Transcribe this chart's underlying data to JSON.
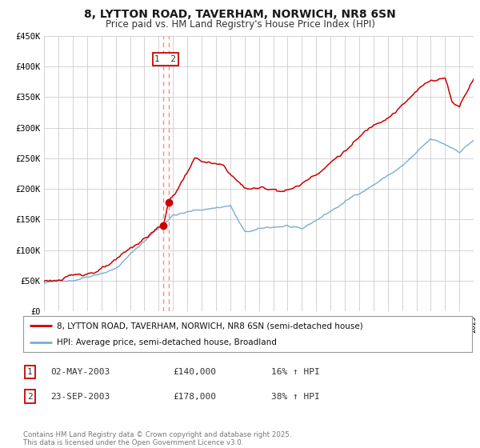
{
  "title": "8, LYTTON ROAD, TAVERHAM, NORWICH, NR8 6SN",
  "subtitle": "Price paid vs. HM Land Registry's House Price Index (HPI)",
  "legend_property": "8, LYTTON ROAD, TAVERHAM, NORWICH, NR8 6SN (semi-detached house)",
  "legend_hpi": "HPI: Average price, semi-detached house, Broadland",
  "sale1_label": "1",
  "sale1_date": "02-MAY-2003",
  "sale1_price": "£140,000",
  "sale1_hpi": "16% ↑ HPI",
  "sale2_label": "2",
  "sale2_date": "23-SEP-2003",
  "sale2_price": "£178,000",
  "sale2_hpi": "38% ↑ HPI",
  "footer": "Contains HM Land Registry data © Crown copyright and database right 2025.\nThis data is licensed under the Open Government Licence v3.0.",
  "property_color": "#cc0000",
  "hpi_color": "#7aadd4",
  "dashed_line_color": "#ff8888",
  "marker_color": "#cc0000",
  "background_color": "#ffffff",
  "grid_color": "#cccccc",
  "ylim": [
    0,
    450000
  ],
  "yticks": [
    0,
    50000,
    100000,
    150000,
    200000,
    250000,
    300000,
    350000,
    400000,
    450000
  ],
  "ytick_labels": [
    "£0",
    "£50K",
    "£100K",
    "£150K",
    "£200K",
    "£250K",
    "£300K",
    "£350K",
    "£400K",
    "£450K"
  ],
  "sale1_year": 2003.33,
  "sale2_year": 2003.73,
  "sale1_price_val": 140000,
  "sale2_price_val": 178000,
  "xmin": 1995,
  "xmax": 2025
}
